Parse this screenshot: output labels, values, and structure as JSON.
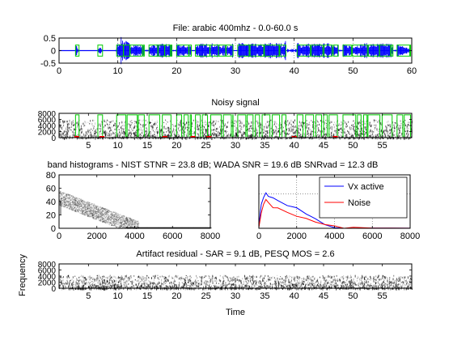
{
  "figure": {
    "background": "#ffffff",
    "colors": {
      "waveform": "#0000ff",
      "vad": "#00cc00",
      "vx_active": "#0000ff",
      "noise": "#ff0000",
      "spectrogram": "#000000",
      "red_markers": "#ff0000"
    }
  },
  "chart_data": [
    {
      "type": "line",
      "panel": "waveform",
      "title": "File: arabic 400mhz - 0.0-60.0 s",
      "xlabel": "",
      "ylabel": "",
      "xlim": [
        0,
        60
      ],
      "ylim": [
        -0.5,
        0.5
      ],
      "xticks": [
        "0",
        "10",
        "20",
        "30",
        "40",
        "50",
        "60"
      ],
      "yticks": [
        "-0.5",
        "0",
        "0.5"
      ],
      "grid": "x dotted",
      "series": [
        {
          "kind": "waveform",
          "x": [
            0,
            2,
            3,
            3.2,
            5,
            6.5,
            7,
            7.3,
            9,
            10,
            10.5,
            12,
            14,
            16,
            18,
            20,
            22,
            24,
            26,
            28,
            30,
            32,
            34,
            36,
            38,
            39,
            40,
            41,
            42,
            44,
            46,
            48,
            50,
            52,
            54,
            56,
            58,
            60
          ],
          "amplitude": [
            0.01,
            0.02,
            0.22,
            0.05,
            0.01,
            0.02,
            0.2,
            0.05,
            0.02,
            0.3,
            0.55,
            0.3,
            0.22,
            0.25,
            0.28,
            0.26,
            0.2,
            0.28,
            0.3,
            0.2,
            0.3,
            0.32,
            0.25,
            0.33,
            0.3,
            0.5,
            0.55,
            0.25,
            0.3,
            0.28,
            0.3,
            0.26,
            0.22,
            0.3,
            0.28,
            0.3,
            0.25,
            0.05
          ]
        },
        {
          "kind": "vad",
          "segments": [
            [
              2.8,
              3.4
            ],
            [
              6.6,
              7.4
            ],
            [
              9.8,
              14.5
            ],
            [
              15.3,
              19.2
            ],
            [
              20,
              22.5
            ],
            [
              23.2,
              29.6
            ],
            [
              30.4,
              38.6
            ],
            [
              40.5,
              47.5
            ],
            [
              48.3,
              56.8
            ],
            [
              57.5,
              59.8
            ]
          ],
          "level": 0.22
        }
      ]
    },
    {
      "type": "heatmap",
      "panel": "noisy-spectrogram",
      "title": "Noisy signal",
      "xlim": [
        0,
        60
      ],
      "ylim": [
        0,
        8000
      ],
      "xticks": [
        "5",
        "10",
        "15",
        "20",
        "25",
        "30",
        "35",
        "40",
        "45",
        "50",
        "55"
      ],
      "yticks": [
        "0",
        "2000",
        "4000",
        "6000",
        "8000"
      ],
      "vad_segments": [
        [
          2.8,
          3.4
        ],
        [
          6.6,
          7.4
        ],
        [
          9.8,
          14.5
        ],
        [
          15.3,
          19.2
        ],
        [
          20,
          22.5
        ],
        [
          23.2,
          29.6
        ],
        [
          30.4,
          38.6
        ],
        [
          40.5,
          47.5
        ],
        [
          48.3,
          56.8
        ],
        [
          57.5,
          59.8
        ]
      ],
      "vad_level": 7500,
      "red_marks": [
        3,
        7.3,
        18,
        22.8,
        25.5,
        40,
        47
      ]
    },
    {
      "type": "heatmap",
      "panel": "band-histogram",
      "title": "band histograms - NIST STNR = 23.8 dB; WADA SNR  = 19.6 dB SNRvad = 12.3 dB",
      "xlim": [
        0,
        8000
      ],
      "ylim": [
        0,
        80
      ],
      "xticks": [
        "0",
        "2000",
        "4000",
        "6000",
        "8000"
      ],
      "yticks": [
        "0",
        "20",
        "40",
        "60",
        "80"
      ]
    },
    {
      "type": "line",
      "panel": "spectra",
      "xlim": [
        0,
        8000
      ],
      "ylim": [
        0,
        70
      ],
      "xticks": [
        "0",
        "2000",
        "4000",
        "6000",
        "8000"
      ],
      "grid": "dotted",
      "legend_position": "top-right",
      "series": [
        {
          "name": "Vx active",
          "color": "#0000ff",
          "x": [
            0,
            125,
            250,
            375,
            500,
            750,
            1000,
            1500,
            2000,
            2500,
            3000,
            3500,
            4000,
            4500,
            5000,
            6000,
            7000,
            8000
          ],
          "y": [
            2,
            30,
            40,
            45,
            43,
            40,
            37,
            31,
            25,
            19,
            13,
            6,
            2,
            1,
            0.5,
            0.3,
            0.2,
            0.1
          ]
        },
        {
          "name": "Noise",
          "color": "#ff0000",
          "x": [
            0,
            125,
            250,
            375,
            500,
            750,
            1000,
            1500,
            2000,
            2500,
            3000,
            3500,
            4000,
            4500,
            5000,
            6000,
            7000,
            8000
          ],
          "y": [
            1,
            20,
            30,
            36,
            33,
            28,
            25,
            20,
            16,
            12,
            8,
            4,
            2,
            1,
            0.5,
            0.2,
            0.2,
            0.1
          ]
        }
      ]
    },
    {
      "type": "heatmap",
      "panel": "artifact-spectrogram",
      "title": "Artifact residual - SAR = 9.1 dB,  PESQ MOS = 2.6",
      "xlabel": "Time",
      "ylabel": "Frequency",
      "xlim": [
        0,
        60
      ],
      "ylim": [
        0,
        8000
      ],
      "xticks": [
        "5",
        "10",
        "15",
        "20",
        "25",
        "30",
        "35",
        "40",
        "45",
        "50",
        "55"
      ],
      "yticks": [
        "0",
        "2000",
        "4000",
        "6000",
        "8000"
      ]
    }
  ]
}
